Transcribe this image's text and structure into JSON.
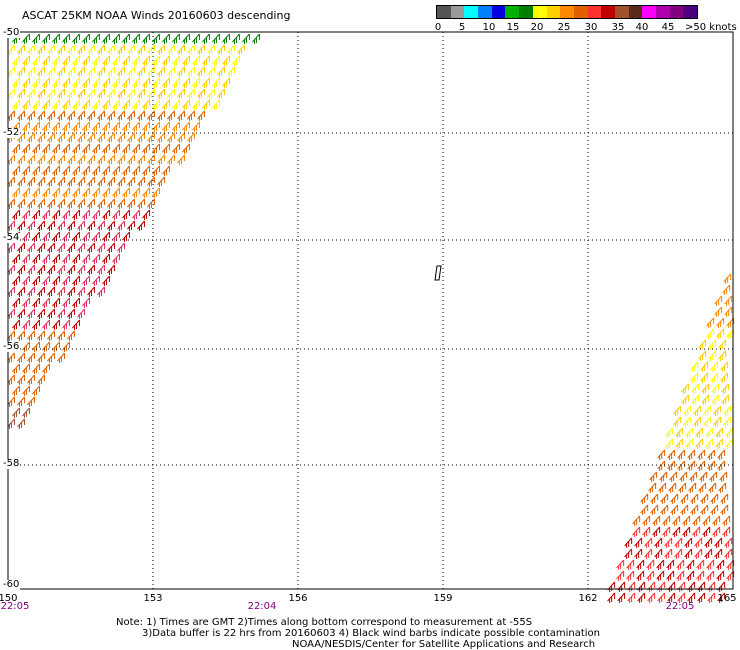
{
  "title": "ASCAT 25KM NOAA Winds 20160603 descending",
  "legend": {
    "colors": [
      "#555555",
      "#9a9a9a",
      "#00ffff",
      "#0080ff",
      "#0000e0",
      "#00b000",
      "#008000",
      "#ffff00",
      "#ffd000",
      "#ff8800",
      "#e06000",
      "#ff3030",
      "#c00000",
      "#a0522d",
      "#5a2a1a",
      "#ff00ff",
      "#b000b0",
      "#800080",
      "#4b0082"
    ],
    "labels": [
      "0",
      "5",
      "10",
      "15",
      "20",
      "25",
      "30",
      "35",
      "40",
      "45"
    ],
    "unit_label": ">50 knots"
  },
  "axes": {
    "lon_labels": [
      "150",
      "153",
      "156",
      "159",
      "162",
      "165"
    ],
    "lat_labels": [
      "-50",
      "-52",
      "-54",
      "-56",
      "-58",
      "-60"
    ],
    "time_labels": [
      "22:05",
      "22:04",
      "22:05"
    ]
  },
  "notes": {
    "line1": "Note: 1) Times are GMT 2)Times along bottom correspond to measurement at -55S",
    "line2": "3)Data buffer is 22 hrs from 20160603 4) Black wind barbs indicate possible contamination",
    "line3": "NOAA/NESDIS/Center for Satellite Applications and Research"
  },
  "icons": [
    "wind-barb-icon"
  ]
}
